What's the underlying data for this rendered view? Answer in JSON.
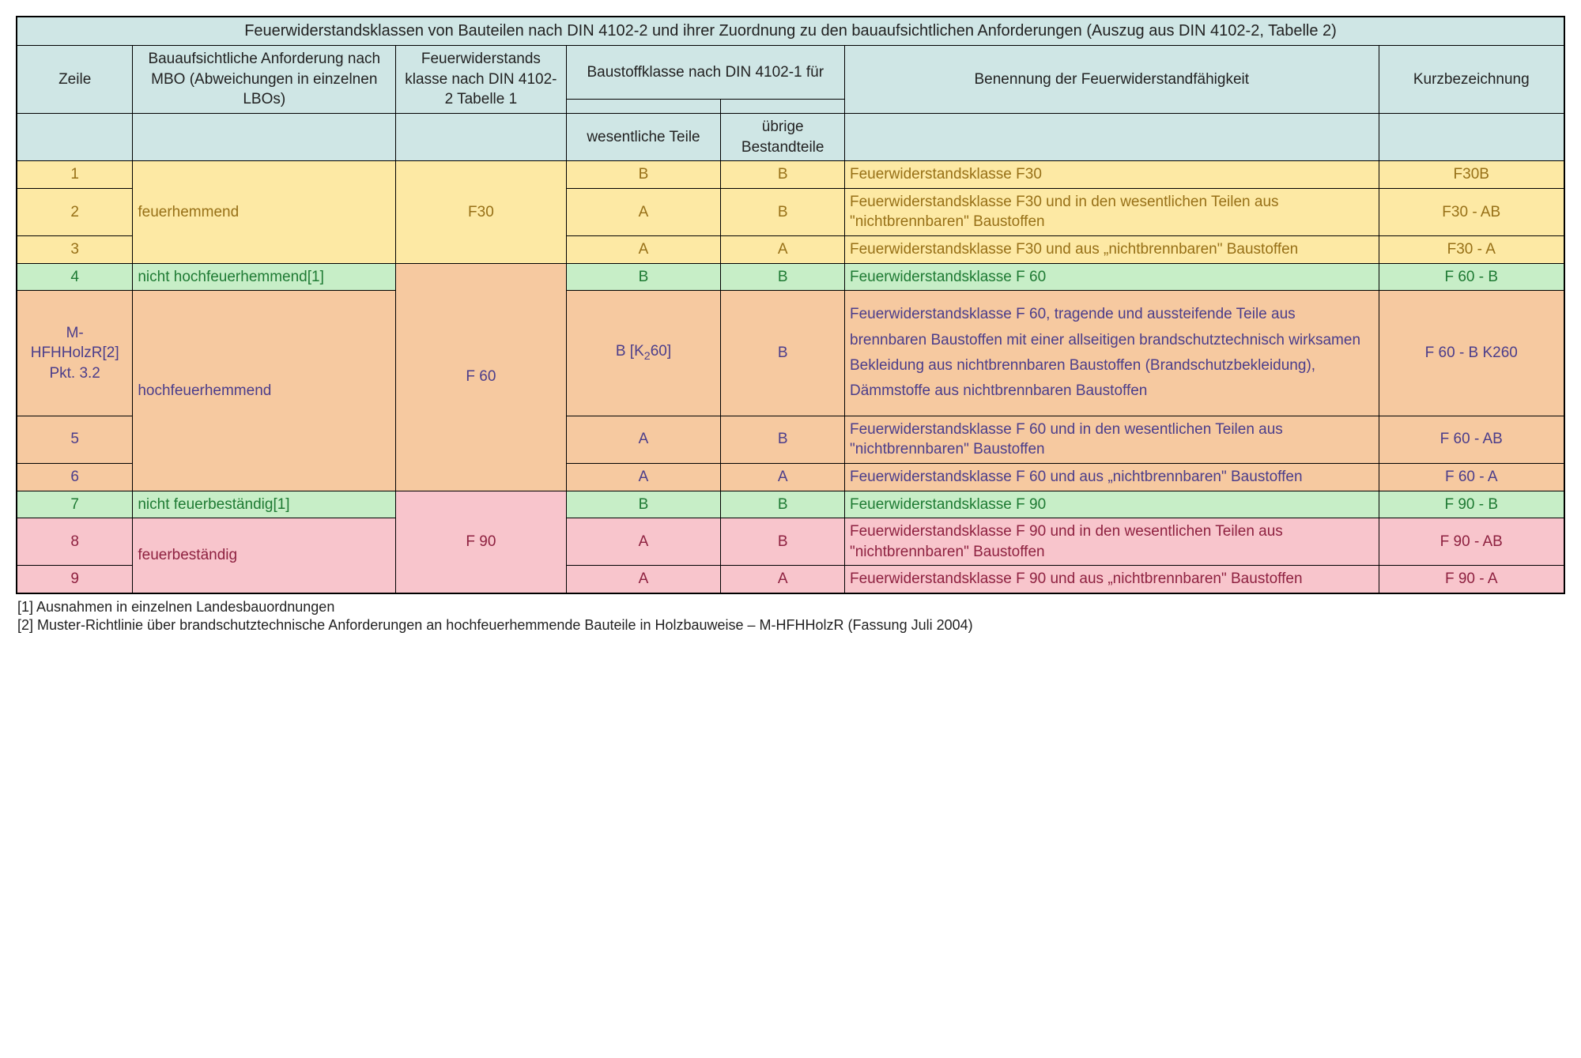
{
  "colors": {
    "header_bg": "#cfe6e5",
    "yellow_bg": "#fde9a4",
    "yellow_text": "#977017",
    "green_bg": "#c7eec7",
    "green_text": "#1e7a33",
    "orange_bg": "#f6c9a0",
    "orange_text": "#4b3d8b",
    "pink_bg": "#f8c5cc",
    "pink_text": "#8e2140"
  },
  "layout": {
    "col_widths_pct": [
      7.5,
      17,
      11,
      10,
      8,
      34.5,
      12
    ]
  },
  "title": "Feuerwiderstandsklassen von Bauteilen nach DIN 4102-2 und ihrer Zuordnung zu den bauaufsichtlichen Anforderungen (Auszug aus DIN 4102-2, Tabelle 2)",
  "headers": {
    "zeile": "Zeile",
    "mbo": "Bauaufsichtliche Anforderung nach MBO (Abweichungen in einzelnen LBOs)",
    "klasse": "Feuerwiderstands klasse nach DIN 4102-2 Tabelle 1",
    "baustoff_span": "Baustoffklasse nach DIN 4102-1 für",
    "benennung": "Benennung der Feuerwiderstandfähigkeit",
    "kurz": "Kurzbezeichnung",
    "wesentliche": "wesentliche Teile",
    "uebrige": "übrige Bestandteile"
  },
  "groups": {
    "f30": {
      "mbo": "feuerhemmend",
      "klasse": "F30"
    },
    "f60_nicht": {
      "mbo": "nicht hochfeuerhemmend[1]"
    },
    "f60": {
      "mbo": "hochfeuerhemmend",
      "klasse": "F 60"
    },
    "f90_nicht": {
      "mbo": "nicht feuerbeständig[1]"
    },
    "f90": {
      "mbo": "feuerbeständig",
      "klasse": "F 90"
    }
  },
  "rows": {
    "r1": {
      "zeile": "1",
      "w": "B",
      "u": "B",
      "ben": "Feuerwiderstandsklasse F30",
      "kurz": "F30B"
    },
    "r2": {
      "zeile": "2",
      "w": "A",
      "u": "B",
      "ben": "Feuerwiderstandsklasse F30 und in den wesentlichen Teilen aus \"nichtbrennbaren\" Baustoffen",
      "kurz": "F30 - AB"
    },
    "r3": {
      "zeile": "3",
      "w": "A",
      "u": "A",
      "ben": "Feuerwiderstandsklasse F30 und aus „nichtbrennbaren\" Baustoffen",
      "kurz": "F30 - A"
    },
    "r4": {
      "zeile": "4",
      "w": "B",
      "u": "B",
      "ben": "Feuerwiderstandsklasse F 60",
      "kurz": "F 60 - B"
    },
    "rM": {
      "zeile": "M-HFHHolzR[2] Pkt. 3.2",
      "w_html": "B [K<sub>2</sub>60]",
      "u": "B",
      "ben": "Feuerwiderstandsklasse F 60, tragende und aussteifende Teile aus brennbaren Baustoffen mit einer allseitigen brandschutztechnisch wirksamen Bekleidung aus nichtbrennbaren Baustoffen (Brandschutzbekleidung), Dämmstoffe aus nichtbrennbaren Baustoffen",
      "kurz": "F 60 - B K260"
    },
    "r5": {
      "zeile": "5",
      "w": "A",
      "u": "B",
      "ben": "Feuerwiderstandsklasse F 60 und in den wesentlichen Teilen aus \"nichtbrennbaren\" Baustoffen",
      "kurz": "F 60 - AB"
    },
    "r6": {
      "zeile": "6",
      "w": "A",
      "u": "A",
      "ben": "Feuerwiderstandsklasse F 60 und aus „nichtbrennbaren\" Baustoffen",
      "kurz": "F 60 - A"
    },
    "r7": {
      "zeile": "7",
      "w": "B",
      "u": "B",
      "ben": "Feuerwiderstandsklasse F 90",
      "kurz": "F 90 - B"
    },
    "r8": {
      "zeile": "8",
      "w": "A",
      "u": "B",
      "ben": "Feuerwiderstandsklasse F 90 und in den wesentlichen Teilen aus \"nichtbrennbaren\" Baustoffen",
      "kurz": "F 90 - AB"
    },
    "r9": {
      "zeile": "9",
      "w": "A",
      "u": "A",
      "ben": "Feuerwiderstandsklasse F 90 und aus „nichtbrennbaren\" Baustoffen",
      "kurz": "F 90 - A"
    }
  },
  "footnotes": {
    "n1": "[1] Ausnahmen in einzelnen Landesbauordnungen",
    "n2": "[2] Muster-Richtlinie über brandschutztechnische Anforderungen an hochfeuerhemmende Bauteile in Holzbauweise – M-HFHHolzR  (Fassung Juli 2004)"
  }
}
